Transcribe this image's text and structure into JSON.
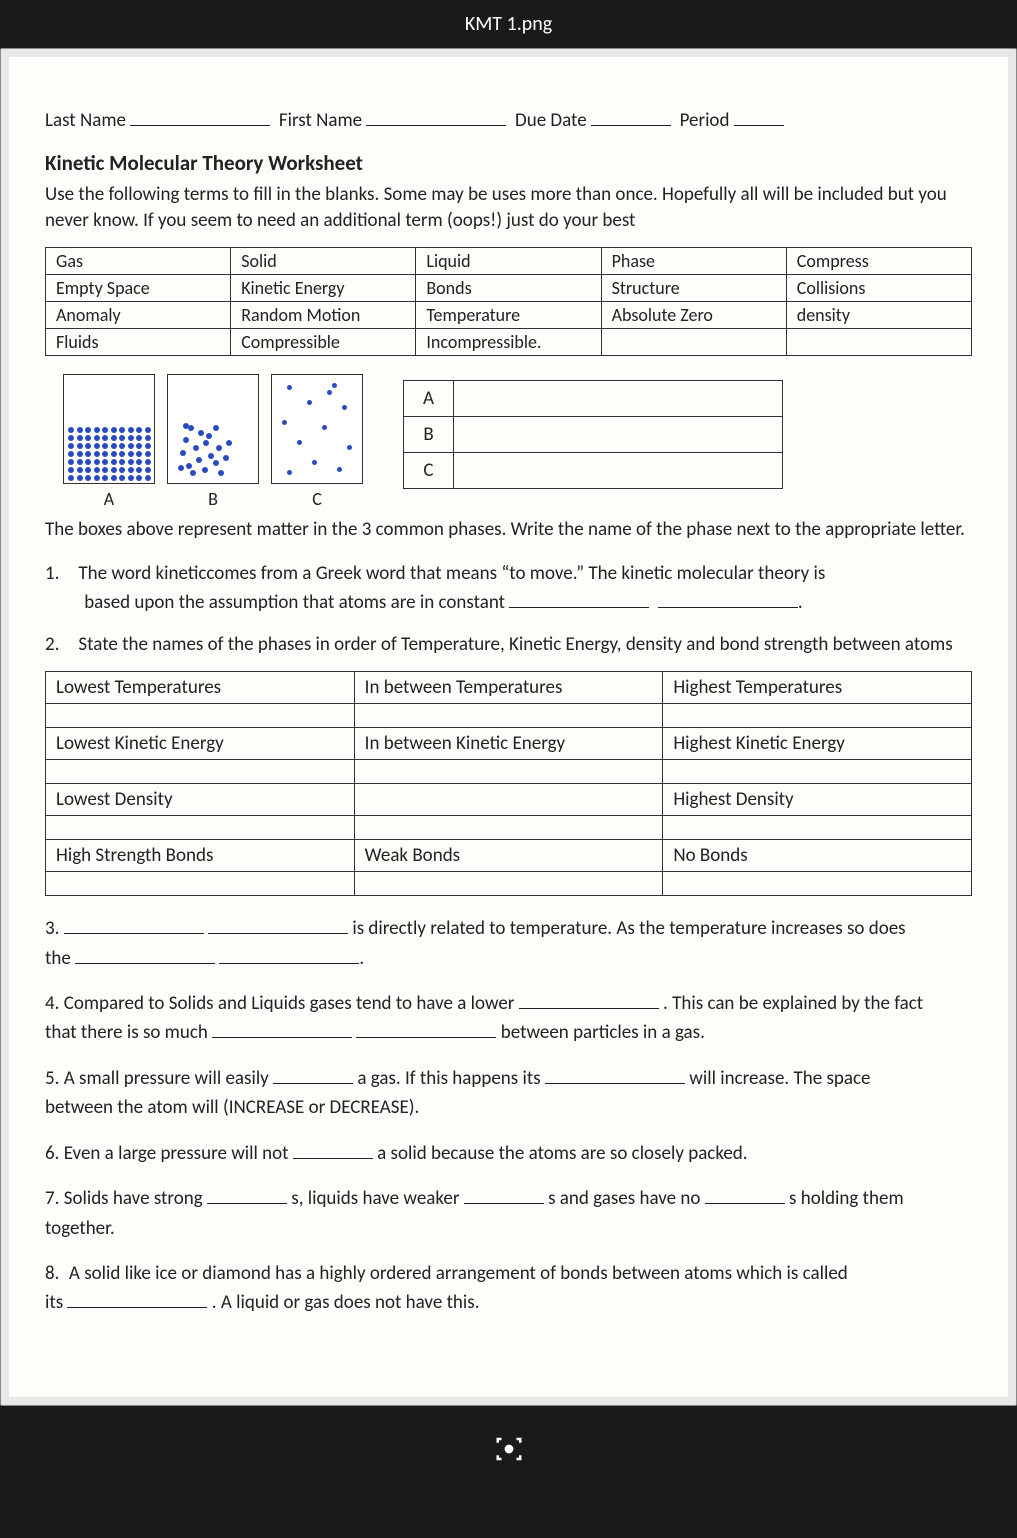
{
  "window_title": "KMT 1.png",
  "header": {
    "last_name_label": "Last Name",
    "first_name_label": "First Name",
    "due_date_label": "Due Date",
    "period_label": "Period"
  },
  "worksheet_title": "Kinetic Molecular Theory Worksheet",
  "instructions": "Use the following terms to fill in the blanks. Some may be uses more than once. Hopefully all will be included but you never know. If you seem to need an additional term (oops!) just do your best",
  "term_table": {
    "rows": [
      [
        "Gas",
        "Solid",
        "Liquid",
        "Phase",
        "Compress"
      ],
      [
        "Empty Space",
        "Kinetic Energy",
        "Bonds",
        "Structure",
        "Collisions"
      ],
      [
        "Anomaly",
        "Random Motion",
        "Temperature",
        "Absolute Zero",
        "density"
      ],
      [
        "Fluids",
        "Compressible",
        "Incompressible.",
        "",
        ""
      ]
    ]
  },
  "phase_diagram": {
    "labels": [
      "A",
      "B",
      "C"
    ],
    "dot_color": "#2a4bbf",
    "box_border": "#333333"
  },
  "abc_table": {
    "rows": [
      "A",
      "B",
      "C"
    ]
  },
  "phase_caption": "The boxes above represent matter in the 3 common phases. Write the name of the phase next to the appropriate letter.",
  "q1_a": "1. The word kineticcomes from a Greek word that means “to move.” The kinetic molecular theory is",
  "q1_b": "based upon the assumption that atoms are in constant",
  "q2": "2. State the names of the phases in order of Temperature, Kinetic Energy, density and bond strength between atoms",
  "prop_table": {
    "rows": [
      [
        "Lowest Temperatures",
        "In between Temperatures",
        "Highest Temperatures"
      ],
      [
        "",
        "",
        ""
      ],
      [
        "Lowest Kinetic Energy",
        "In between Kinetic Energy",
        "Highest Kinetic Energy"
      ],
      [
        "",
        "",
        ""
      ],
      [
        "Lowest Density",
        "",
        "Highest Density"
      ],
      [
        "",
        "",
        ""
      ],
      [
        "High Strength Bonds",
        "Weak Bonds",
        "No Bonds"
      ],
      [
        "",
        "",
        ""
      ]
    ]
  },
  "q3_a": "3.",
  "q3_b": "is directly related to temperature. As the temperature increases so does",
  "q3_c": "the",
  "q4_a": "4. Compared to Solids and Liquids gases tend to have a lower",
  "q4_b": ". This can be explained by the fact",
  "q4_c": "that there is so much",
  "q4_d": "between particles in a gas.",
  "q5_a": "5. A small pressure will easily",
  "q5_b": "a gas. If this happens its",
  "q5_c": "will increase. The space",
  "q5_d": "between the atom will (INCREASE or DECREASE).",
  "q6_a": "6. Even a large pressure will not",
  "q6_b": "a solid because the atoms are so closely packed.",
  "q7_a": "7. Solids have strong",
  "q7_b": "s, liquids have weaker",
  "q7_c": "s and gases have no",
  "q7_d": "s holding them",
  "q7_e": "together.",
  "q8_a": "8. A solid like ice or diamond has a highly ordered arrangement of bonds between atoms which is called",
  "q8_b": "its",
  "q8_c": ". A liquid or gas does not have this.",
  "colors": {
    "background": "#1a1a1a",
    "page_bg": "#fdfdfa",
    "text": "#222222"
  }
}
